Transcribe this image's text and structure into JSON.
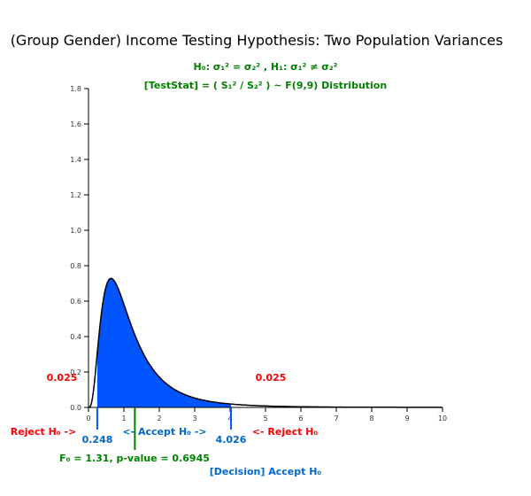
{
  "chart_data": {
    "type": "area",
    "title": "(Group Gender) Income Testing Hypothesis: Two Population Variances",
    "hypothesis": "H₀: σ₁² = σ₂² , H₁: σ₁² ≠ σ₂²",
    "statistic": "[TestStat] = ( S₁² / S₂² ) ~ F(9,9) Distribution",
    "df1": 9,
    "df2": 9,
    "xlim": [
      0,
      10
    ],
    "ylim": [
      0,
      1.8
    ],
    "x_ticks": [
      "0",
      "1",
      "2",
      "3",
      "4",
      "5",
      "6",
      "7",
      "8",
      "9",
      "10"
    ],
    "y_ticks": [
      "0.0",
      "0.2",
      "0.4",
      "0.6",
      "0.8",
      "1.0",
      "1.2",
      "1.4",
      "1.6",
      "1.8"
    ],
    "critical_lower": 0.248,
    "critical_upper": 4.026,
    "observed_f": 1.31,
    "tail_left_label": "0.025",
    "tail_right_label": "0.025",
    "reject_left_label": "Reject H₀ ->",
    "accept_label": "<- Accept H₀ ->",
    "reject_right_label": "<- Reject H₀",
    "critical_lower_label": "0.248",
    "critical_upper_label": "4.026",
    "observed_label": "F₀ = 1.31, p-value = 0.6945",
    "decision_label": "[Decision] Accept H₀"
  },
  "colors": {
    "accept_fill": "#0055ff",
    "curve": "#000000",
    "reject_text": "#ff0000",
    "accept_text": "#0066cc",
    "observed": "#008000",
    "hypothesis_text": "#008000"
  }
}
